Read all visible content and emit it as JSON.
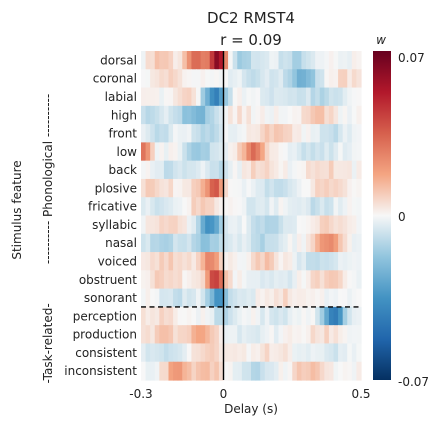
{
  "chart_data": {
    "type": "heatmap",
    "title": "DC2 RMST4",
    "subtitle": "r = 0.09",
    "xlabel": "Delay (s)",
    "ylabel": "Stimulus feature",
    "x_ticks": [
      {
        "value": -0.3,
        "label": "-0.3"
      },
      {
        "value": 0,
        "label": "0"
      },
      {
        "value": 0.5,
        "label": "0.5"
      }
    ],
    "xlim": [
      -0.3,
      0.5
    ],
    "groups": [
      {
        "label": "---------- Phonological ----------",
        "rows": [
          0,
          13
        ]
      },
      {
        "label": "-Task-related-",
        "rows": [
          14,
          17
        ]
      }
    ],
    "colorbar": {
      "label": "w",
      "min": -0.07,
      "max": 0.07,
      "tick_labels": [
        "0.07",
        "0",
        "-0.07"
      ],
      "colormap": "RdBu_r"
    },
    "rows": [
      {
        "name": "dorsal",
        "blobs": [
          [
            -0.23,
            0.03,
            0.012
          ],
          [
            -0.1,
            0.03,
            0.035
          ],
          [
            -0.02,
            0.022,
            0.062
          ],
          [
            0.07,
            0.04,
            -0.014
          ],
          [
            0.27,
            0.05,
            -0.012
          ]
        ]
      },
      {
        "name": "coronal",
        "blobs": [
          [
            -0.21,
            0.04,
            0.007
          ],
          [
            0.12,
            0.05,
            -0.007
          ],
          [
            0.29,
            0.04,
            -0.024
          ],
          [
            0.44,
            0.04,
            0.006
          ]
        ]
      },
      {
        "name": "labial",
        "blobs": [
          [
            -0.03,
            0.03,
            -0.042
          ],
          [
            -0.13,
            0.03,
            0.008
          ],
          [
            0.2,
            0.05,
            -0.006
          ],
          [
            0.36,
            0.06,
            -0.01
          ]
        ]
      },
      {
        "name": "high",
        "blobs": [
          [
            -0.27,
            0.03,
            -0.012
          ],
          [
            -0.1,
            0.05,
            -0.024
          ],
          [
            0.05,
            0.04,
            0.004
          ],
          [
            0.34,
            0.04,
            0.01
          ]
        ]
      },
      {
        "name": "front",
        "blobs": [
          [
            -0.24,
            0.05,
            -0.008
          ],
          [
            -0.06,
            0.04,
            -0.012
          ],
          [
            0.19,
            0.05,
            0.01
          ],
          [
            0.4,
            0.04,
            -0.008
          ]
        ]
      },
      {
        "name": "low",
        "blobs": [
          [
            -0.29,
            0.018,
            0.03
          ],
          [
            -0.09,
            0.04,
            -0.018
          ],
          [
            0.11,
            0.03,
            0.03
          ],
          [
            0.34,
            0.05,
            -0.009
          ]
        ]
      },
      {
        "name": "back",
        "blobs": [
          [
            -0.19,
            0.05,
            -0.008
          ],
          [
            -0.02,
            0.04,
            -0.01
          ],
          [
            0.13,
            0.04,
            0.008
          ],
          [
            0.36,
            0.05,
            0.008
          ]
        ]
      },
      {
        "name": "plosive",
        "blobs": [
          [
            -0.25,
            0.05,
            0.008
          ],
          [
            -0.09,
            0.03,
            0.01
          ],
          [
            -0.03,
            0.022,
            0.036
          ],
          [
            0.18,
            0.05,
            -0.008
          ],
          [
            0.38,
            0.05,
            0.008
          ]
        ]
      },
      {
        "name": "fricative",
        "blobs": [
          [
            -0.22,
            0.05,
            -0.008
          ],
          [
            -0.08,
            0.04,
            0.01
          ],
          [
            0.12,
            0.05,
            -0.006
          ],
          [
            0.34,
            0.05,
            -0.008
          ]
        ]
      },
      {
        "name": "syllabic",
        "blobs": [
          [
            -0.19,
            0.04,
            0.008
          ],
          [
            -0.05,
            0.03,
            -0.036
          ],
          [
            0.16,
            0.05,
            -0.012
          ],
          [
            0.38,
            0.04,
            0.008
          ]
        ]
      },
      {
        "name": "nasal",
        "blobs": [
          [
            -0.22,
            0.05,
            -0.012
          ],
          [
            -0.06,
            0.04,
            -0.018
          ],
          [
            0.14,
            0.05,
            -0.012
          ],
          [
            0.38,
            0.03,
            0.026
          ]
        ]
      },
      {
        "name": "voiced",
        "blobs": [
          [
            -0.2,
            0.05,
            0.008
          ],
          [
            -0.05,
            0.03,
            0.024
          ],
          [
            0.15,
            0.04,
            0.01
          ],
          [
            0.34,
            0.05,
            -0.008
          ]
        ]
      },
      {
        "name": "obstruent",
        "blobs": [
          [
            -0.21,
            0.05,
            0.008
          ],
          [
            -0.03,
            0.025,
            0.042
          ],
          [
            0.19,
            0.05,
            -0.006
          ],
          [
            0.38,
            0.05,
            0.008
          ]
        ]
      },
      {
        "name": "sonorant",
        "blobs": [
          [
            -0.17,
            0.05,
            -0.008
          ],
          [
            -0.02,
            0.025,
            -0.034
          ],
          [
            0.06,
            0.04,
            -0.006
          ],
          [
            0.22,
            0.05,
            0.006
          ]
        ]
      },
      {
        "name": "perception",
        "blobs": [
          [
            -0.24,
            0.05,
            0.006
          ],
          [
            0.0,
            0.03,
            -0.012
          ],
          [
            0.2,
            0.05,
            -0.006
          ],
          [
            0.4,
            0.03,
            -0.044
          ]
        ]
      },
      {
        "name": "production",
        "blobs": [
          [
            -0.22,
            0.04,
            0.01
          ],
          [
            -0.08,
            0.04,
            0.018
          ],
          [
            0.1,
            0.05,
            -0.005
          ],
          [
            0.36,
            0.05,
            0.006
          ]
        ]
      },
      {
        "name": "consistent",
        "blobs": [
          [
            -0.22,
            0.05,
            -0.008
          ],
          [
            -0.05,
            0.04,
            0.008
          ],
          [
            0.16,
            0.05,
            0.005
          ],
          [
            0.38,
            0.05,
            -0.006
          ]
        ]
      },
      {
        "name": "inconsistent",
        "blobs": [
          [
            -0.17,
            0.03,
            0.02
          ],
          [
            -0.06,
            0.04,
            0.012
          ],
          [
            0.11,
            0.04,
            -0.01
          ],
          [
            0.31,
            0.04,
            0.012
          ]
        ]
      }
    ],
    "divider_after_row": 13,
    "zero_line": 0
  }
}
